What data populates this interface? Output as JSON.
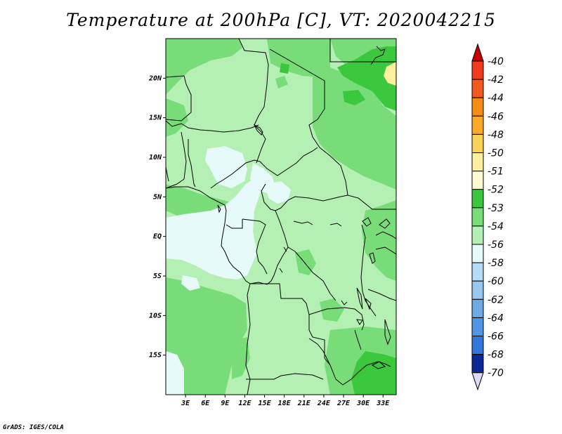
{
  "title": "Temperature at 200hPa [C], VT: 2020042215",
  "credit": "GrADS: IGES/COLA",
  "map": {
    "lat_ticks": [
      {
        "label": "20N",
        "lat": 20
      },
      {
        "label": "15N",
        "lat": 15
      },
      {
        "label": "10N",
        "lat": 10
      },
      {
        "label": "5N",
        "lat": 5
      },
      {
        "label": "EQ",
        "lat": 0
      },
      {
        "label": "5S",
        "lat": -5
      },
      {
        "label": "10S",
        "lat": -10
      },
      {
        "label": "15S",
        "lat": -15
      }
    ],
    "lon_ticks": [
      {
        "label": "3E",
        "lon": 3
      },
      {
        "label": "6E",
        "lon": 6
      },
      {
        "label": "9E",
        "lon": 9
      },
      {
        "label": "12E",
        "lon": 12
      },
      {
        "label": "15E",
        "lon": 15
      },
      {
        "label": "18E",
        "lon": 18
      },
      {
        "label": "21E",
        "lon": 21
      },
      {
        "label": "24E",
        "lon": 24
      },
      {
        "label": "27E",
        "lon": 27
      },
      {
        "label": "30E",
        "lon": 30
      },
      {
        "label": "33E",
        "lon": 33
      }
    ],
    "lon_range": [
      0,
      35
    ],
    "lat_range": [
      -20,
      25
    ]
  },
  "colorbar": {
    "top_arrow_color": "#c80000",
    "bottom_arrow_color": "#dcdcf8",
    "levels": [
      {
        "label": "-40",
        "color": "#f03c1e"
      },
      {
        "label": "-42",
        "color": "#f05a1e"
      },
      {
        "label": "-44",
        "color": "#f58c14"
      },
      {
        "label": "-46",
        "color": "#faaa28"
      },
      {
        "label": "-48",
        "color": "#fad25a"
      },
      {
        "label": "-50",
        "color": "#fff0a0"
      },
      {
        "label": "-51",
        "color": "#fffad2"
      },
      {
        "label": "-52",
        "color": "#3cc83c"
      },
      {
        "label": "-53",
        "color": "#78dc78"
      },
      {
        "label": "-54",
        "color": "#b4f0b4"
      },
      {
        "label": "-56",
        "color": "#e6fafa"
      },
      {
        "label": "-58",
        "color": "#b4dcf5"
      },
      {
        "label": "-60",
        "color": "#96c8f0"
      },
      {
        "label": "-62",
        "color": "#6eaae6"
      },
      {
        "label": "-64",
        "color": "#5096e6"
      },
      {
        "label": "-66",
        "color": "#3278dc"
      },
      {
        "label": "-68",
        "color": "#1e50c8"
      },
      {
        "label": "-70",
        "color": "#0a2896"
      }
    ]
  },
  "colors": {
    "light_green": "#b4f0b4",
    "mid_green": "#78dc78",
    "dark_green": "#3cc83c",
    "pale_cyan": "#e6fafa",
    "pale_yellow": "#fff0a0"
  }
}
